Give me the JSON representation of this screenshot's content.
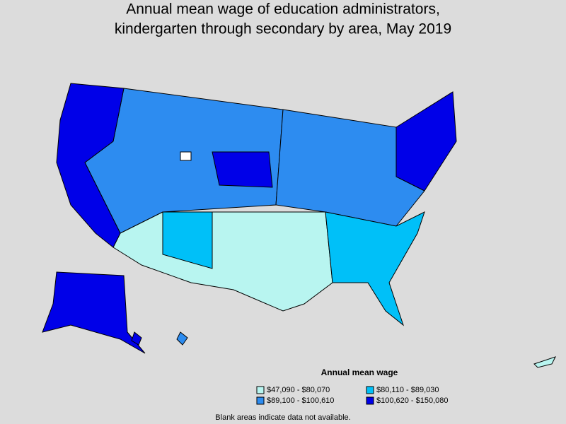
{
  "title": [
    "Annual mean wage of education administrators,",
    "kindergarten through secondary by area, May 2019"
  ],
  "legend": {
    "title": "Annual mean wage",
    "items": [
      {
        "label": "$47,090 - $80,070",
        "color": "#b8f5f0"
      },
      {
        "label": "$80,110 - $89,030",
        "color": "#00c0f8"
      },
      {
        "label": "$89,100 - $100,610",
        "color": "#2d8cf0"
      },
      {
        "label": "$100,620 - $150,080",
        "color": "#0000e8"
      }
    ]
  },
  "footnote": "Blank areas indicate data not available."
}
